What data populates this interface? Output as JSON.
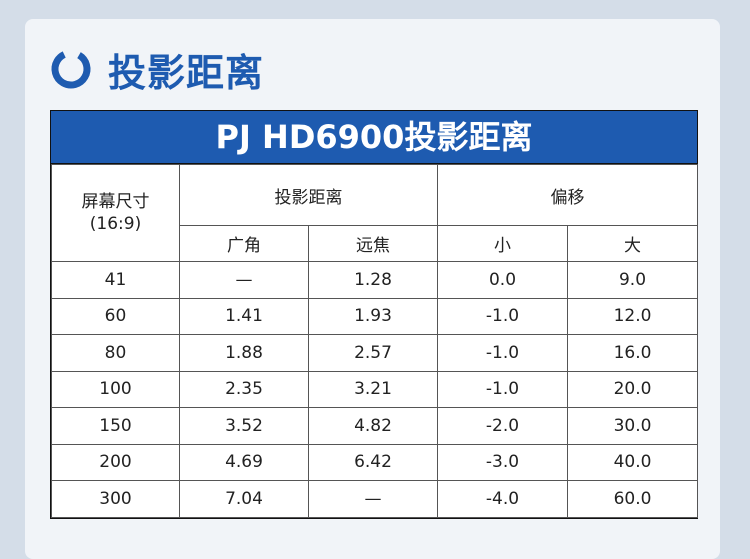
{
  "heading": {
    "title": "投影距离"
  },
  "table": {
    "title": "PJ HD6900投影距离",
    "header": {
      "screen_size_line1": "屏幕尺寸",
      "screen_size_line2": "(16:9)",
      "projection_distance": "投影距离",
      "offset": "偏移",
      "wide": "广角",
      "tele": "远焦",
      "small": "小",
      "large": "大"
    },
    "rows": [
      [
        "41",
        "—",
        "1.28",
        "0.0",
        "9.0"
      ],
      [
        "60",
        "1.41",
        "1.93",
        "-1.0",
        "12.0"
      ],
      [
        "80",
        "1.88",
        "2.57",
        "-1.0",
        "16.0"
      ],
      [
        "100",
        "2.35",
        "3.21",
        "-1.0",
        "20.0"
      ],
      [
        "150",
        "3.52",
        "4.82",
        "-2.0",
        "30.0"
      ],
      [
        "200",
        "4.69",
        "6.42",
        "-3.0",
        "40.0"
      ],
      [
        "300",
        "7.04",
        "—",
        "-4.0",
        "60.0"
      ]
    ]
  },
  "colors": {
    "accent": "#1e5bb0",
    "background": "#d4dde8",
    "card": "#f1f4f8"
  }
}
